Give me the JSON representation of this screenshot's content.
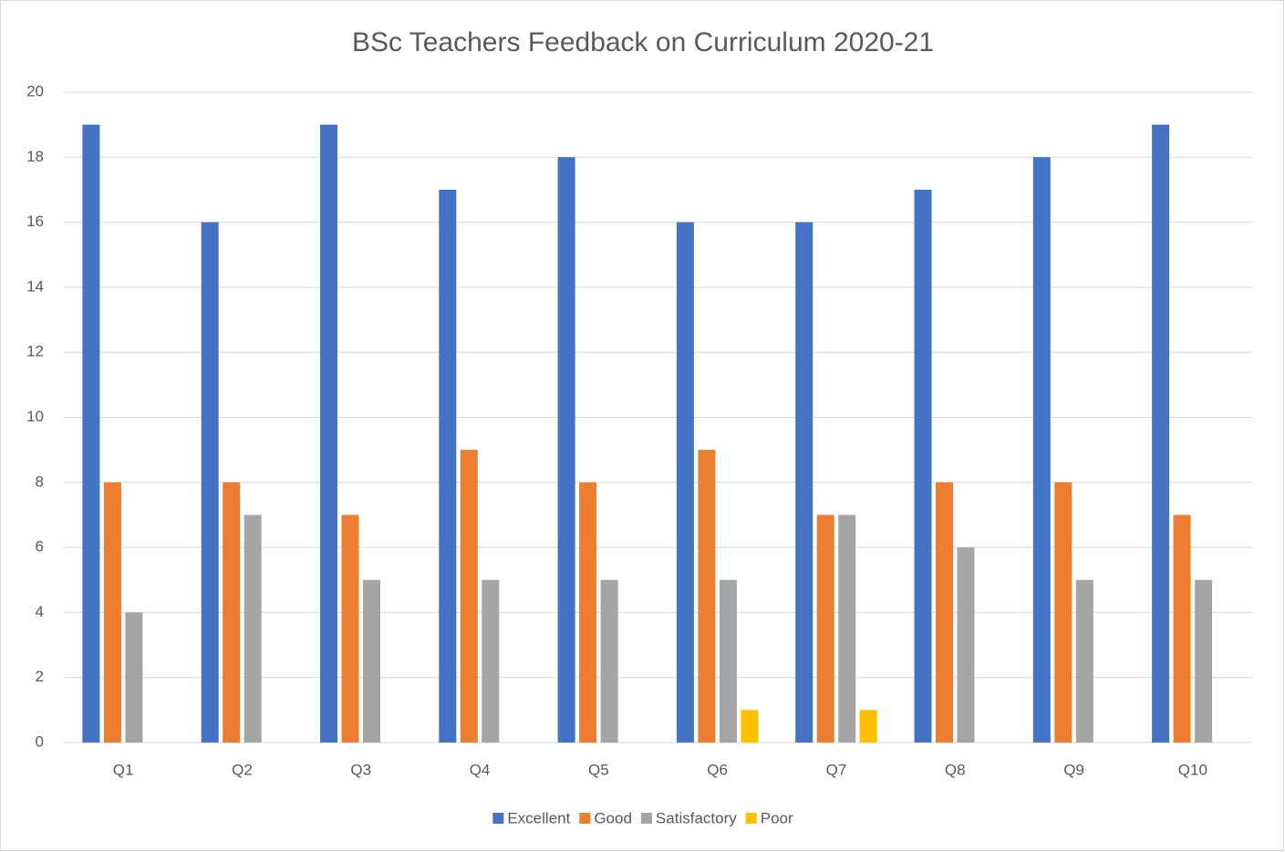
{
  "chart_data": {
    "type": "bar",
    "title": "BSc Teachers Feedback on Curriculum 2020-21",
    "categories": [
      "Q1",
      "Q2",
      "Q3",
      "Q4",
      "Q5",
      "Q6",
      "Q7",
      "Q8",
      "Q9",
      "Q10"
    ],
    "series": [
      {
        "name": "Excellent",
        "color": "#4472c4",
        "values": [
          19,
          16,
          19,
          17,
          18,
          16,
          16,
          17,
          18,
          19
        ]
      },
      {
        "name": "Good",
        "color": "#ed7d31",
        "values": [
          8,
          8,
          7,
          9,
          8,
          9,
          7,
          8,
          8,
          7
        ]
      },
      {
        "name": "Satisfactory",
        "color": "#a5a5a5",
        "values": [
          4,
          7,
          5,
          5,
          5,
          5,
          7,
          6,
          5,
          5
        ]
      },
      {
        "name": "Poor",
        "color": "#ffc000",
        "values": [
          0,
          0,
          0,
          0,
          0,
          1,
          1,
          0,
          0,
          0
        ]
      }
    ],
    "ylim": [
      0,
      20
    ],
    "yticks": [
      0,
      2,
      4,
      6,
      8,
      10,
      12,
      14,
      16,
      18,
      20
    ],
    "grid": true,
    "legend": "bottom"
  }
}
